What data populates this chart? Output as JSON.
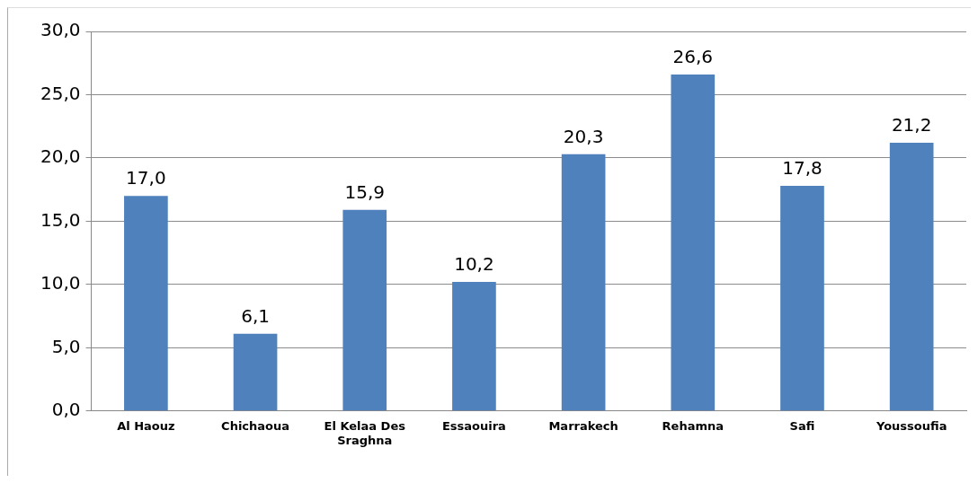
{
  "chart_data": {
    "type": "bar",
    "categories": [
      "Al Haouz",
      "Chichaoua",
      "El Kelaa Des Sraghna",
      "Essaouira",
      "Marrakech",
      "Rehamna",
      "Safi",
      "Youssoufia"
    ],
    "values": [
      17.0,
      6.1,
      15.9,
      10.2,
      20.3,
      26.6,
      17.8,
      21.2
    ],
    "value_labels": [
      "17,0",
      "6,1",
      "15,9",
      "10,2",
      "20,3",
      "26,6",
      "17,8",
      "21,2"
    ],
    "color": "#4f81bd",
    "ylim": [
      0,
      30
    ],
    "yticks": [
      {
        "value": 0,
        "label": "0,0"
      },
      {
        "value": 5,
        "label": "5,0"
      },
      {
        "value": 10,
        "label": "10,0"
      },
      {
        "value": 15,
        "label": "15,0"
      },
      {
        "value": 20,
        "label": "20,0"
      },
      {
        "value": 25,
        "label": "25,0"
      },
      {
        "value": 30,
        "label": "30,0"
      }
    ],
    "grid": "y",
    "legend": false
  }
}
